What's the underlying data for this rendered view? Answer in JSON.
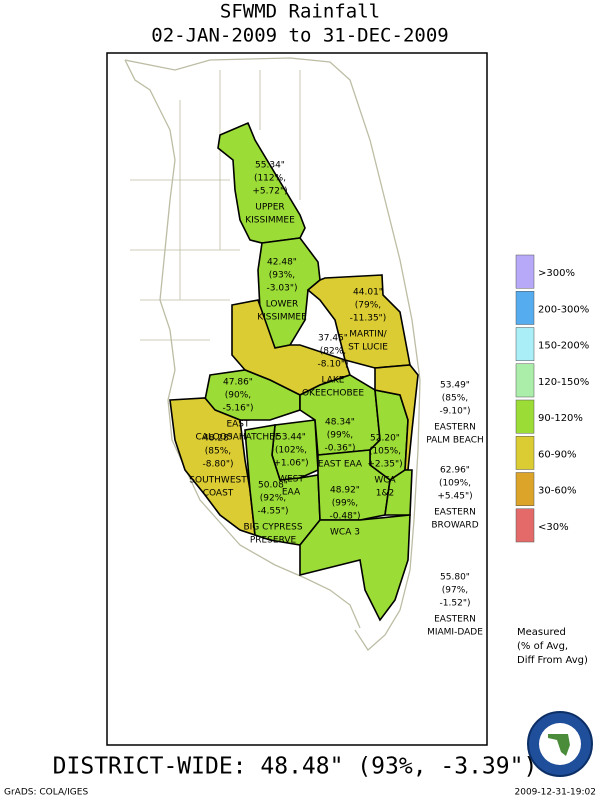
{
  "header": {
    "title": "SFWMD Rainfall",
    "subtitle": "02-JAN-2009 to 31-DEC-2009"
  },
  "regions": [
    {
      "color": "#9bdc36",
      "lines": [
        "55.34\"",
        "(112%,",
        "+5.72\")",
        "UPPER",
        "KISSIMMEE"
      ]
    },
    {
      "color": "#9bdc36",
      "lines": [
        "42.48\"",
        "(93%,",
        "-3.03\")",
        "LOWER",
        "KISSIMMEE"
      ]
    },
    {
      "color": "#dccc33",
      "lines": [
        "44.01\"",
        "(79%,",
        "-11.35\")",
        "MARTIN/",
        "ST LUCIE"
      ]
    },
    {
      "color": "#dccc33",
      "lines": [
        "37.45\"",
        "(82%,",
        "-8.10\")",
        "LAKE",
        "OKEECHOBEE"
      ]
    },
    {
      "color": "#9bdc36",
      "lines": [
        "47.86\"",
        "(90%,",
        "-5.16\")",
        "EAST",
        "CALOOSAHATCHEE"
      ]
    },
    {
      "color": "#dccc33",
      "lines": [
        "48.28\"",
        "(85%,",
        "-8.80\")",
        "SOUTHWEST",
        "COAST"
      ]
    },
    {
      "color": "#9bdc36",
      "lines": [
        "53.44\"",
        "(102%,",
        "+1.06\")",
        "WEST",
        "EAA"
      ]
    },
    {
      "color": "#9bdc36",
      "lines": [
        "48.34\"",
        "(99%,",
        "-0.36\")",
        "EAST EAA"
      ]
    },
    {
      "color": "#9bdc36",
      "lines": [
        "52.20\"",
        "(105%,",
        "+2.35\")",
        "WCA",
        "1&2"
      ]
    },
    {
      "color": "#dccc33",
      "lines": [
        "53.49\"",
        "(85%,",
        "-9.10\")",
        "EASTERN",
        "PALM BEACH"
      ]
    },
    {
      "color": "#9bdc36",
      "lines": [
        "50.08\"",
        "(92%,",
        "-4.55\")",
        "BIG CYPRESS",
        "PRESERVE"
      ]
    },
    {
      "color": "#9bdc36",
      "lines": [
        "48.92\"",
        "(99%,",
        "-0.48\")",
        "WCA 3"
      ]
    },
    {
      "color": "#9bdc36",
      "lines": [
        "62.96\"",
        "(109%,",
        "+5.45\")",
        "EASTERN",
        "BROWARD"
      ]
    },
    {
      "color": "#9bdc36",
      "lines": [
        "55.80\"",
        "(97%,",
        "-1.52\")",
        "EASTERN",
        "MIAMI-DADE"
      ]
    }
  ],
  "legend": [
    {
      "label": ">300%",
      "color": "#b8a8f8"
    },
    {
      "label": "200-300%",
      "color": "#55acee"
    },
    {
      "label": "150-200%",
      "color": "#aaeef8"
    },
    {
      "label": "120-150%",
      "color": "#aaeeaa"
    },
    {
      "label": "90-120%",
      "color": "#9bdc36"
    },
    {
      "label": "60-90%",
      "color": "#dccc33"
    },
    {
      "label": "30-60%",
      "color": "#dca428"
    },
    {
      "label": "<30%",
      "color": "#e46a6a"
    }
  ],
  "note": [
    "Measured",
    "(% of Avg,",
    "Diff From Avg)"
  ],
  "footer": {
    "summary": "DISTRICT-WIDE: 48.48\"  (93%, -3.39\")",
    "credit": "GrADS: COLA/IGES",
    "timestamp": "2009-12-31-19:02"
  }
}
